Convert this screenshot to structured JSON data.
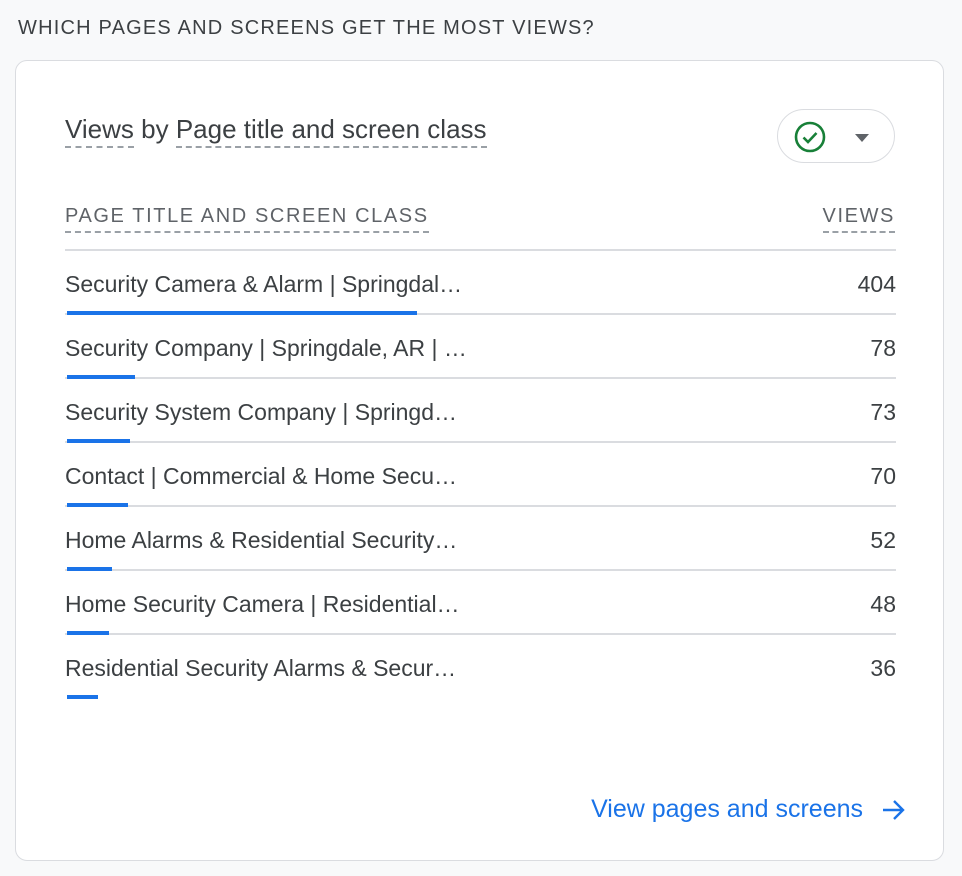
{
  "section_title": "WHICH PAGES AND SCREENS GET THE MOST VIEWS?",
  "card": {
    "title_metric": "Views",
    "title_by": " by ",
    "title_dimension": "Page title and screen class",
    "compare_button": {
      "icon": "check-circle-icon",
      "dropdown_icon": "caret-down-icon",
      "icon_color": "#188038"
    },
    "columns": {
      "dimension": "PAGE TITLE AND SCREEN CLASS",
      "metric": "VIEWS"
    },
    "rows": [
      {
        "name": "Security Camera & Alarm | Springdal…",
        "views": 404
      },
      {
        "name": "Security Company | Springdale, AR | …",
        "views": 78
      },
      {
        "name": "Security System Company | Springd…",
        "views": 73
      },
      {
        "name": "Contact | Commercial & Home Secu…",
        "views": 70
      },
      {
        "name": "Home Alarms & Residential Security…",
        "views": 52
      },
      {
        "name": "Home Security Camera | Residential…",
        "views": 48
      },
      {
        "name": "Residential Security Alarms & Secur…",
        "views": 36
      }
    ],
    "bar_color": "#1a73e8",
    "link": {
      "label": "View pages and screens",
      "icon": "arrow-right-icon"
    }
  }
}
